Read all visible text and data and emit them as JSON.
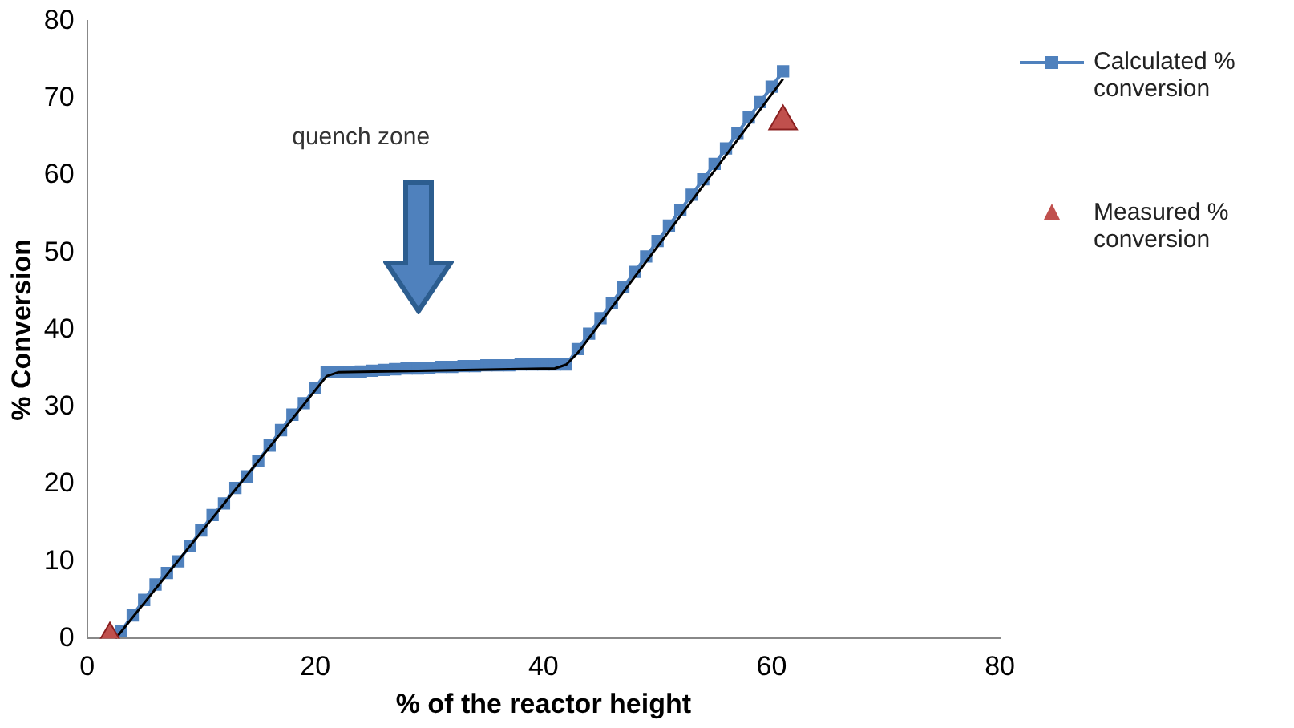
{
  "chart_data": {
    "type": "line",
    "xlabel": "% of the reactor height",
    "ylabel": "% Conversion",
    "xlim": [
      0,
      80
    ],
    "xticks": [
      0,
      20,
      40,
      60,
      80
    ],
    "ylim": [
      0,
      80
    ],
    "yticks": [
      0,
      10,
      20,
      30,
      40,
      50,
      60,
      70,
      80
    ],
    "grid": false,
    "legend": "right",
    "annotations": [
      "quench zone"
    ],
    "series": [
      {
        "name": "Calculated % conversion",
        "color": "#4f81bd",
        "marker": "square",
        "x": [
          3,
          4,
          5,
          6,
          7,
          8,
          9,
          10,
          11,
          12,
          13,
          14,
          15,
          16,
          17,
          18,
          19,
          20,
          21,
          22,
          23,
          24,
          25,
          26,
          27,
          28,
          29,
          30,
          31,
          32,
          33,
          34,
          35,
          36,
          37,
          38,
          39,
          40,
          41,
          42,
          43,
          44,
          45,
          46,
          47,
          48,
          49,
          50,
          51,
          52,
          53,
          54,
          55,
          56,
          57,
          58,
          59,
          60,
          61
        ],
        "values": [
          1,
          3,
          5,
          7,
          8.5,
          10,
          12,
          14,
          16,
          17.5,
          19.5,
          21,
          23,
          25,
          27,
          29,
          30.5,
          32.5,
          34.5,
          34.5,
          34.5,
          34.6,
          34.7,
          34.8,
          34.9,
          35,
          35,
          35.1,
          35.2,
          35.2,
          35.3,
          35.3,
          35.4,
          35.4,
          35.4,
          35.5,
          35.5,
          35.5,
          35.5,
          35.5,
          37.5,
          39.5,
          41.5,
          43.5,
          45.5,
          47.5,
          49.5,
          51.5,
          53.5,
          55.5,
          57.5,
          59.5,
          61.5,
          63.5,
          65.5,
          67.5,
          69.5,
          71.5,
          73.5
        ]
      },
      {
        "color": "#000000",
        "marker": "none",
        "x": [
          2.5,
          21,
          22,
          41,
          42,
          43,
          61
        ],
        "values": [
          0,
          34,
          34.5,
          35,
          35.5,
          37,
          72.5
        ]
      },
      {
        "name": "Measured % conversion",
        "type": "scatter",
        "color": "#c0504d",
        "marker": "triangle",
        "x": [
          2,
          61
        ],
        "values": [
          0,
          67
        ]
      }
    ]
  }
}
